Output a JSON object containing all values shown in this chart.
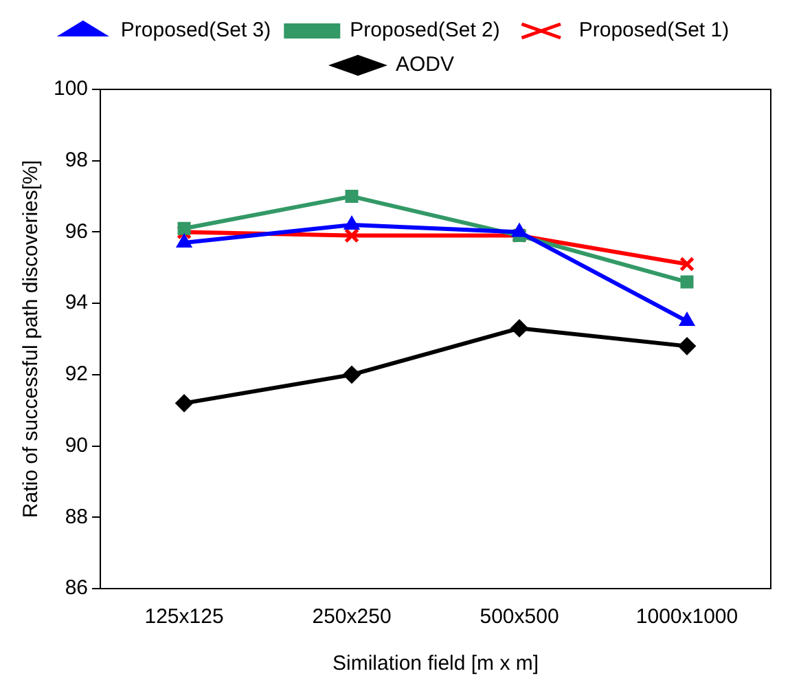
{
  "chart_data": {
    "type": "line",
    "xlabel": "Similation field [m x m]",
    "ylabel": "Ratio of successful path discoveries[%]",
    "categories": [
      "125x125",
      "250x250",
      "500x500",
      "1000x1000"
    ],
    "series": [
      {
        "name": "AODV",
        "color": "#000000",
        "marker": "diamond",
        "values": [
          91.2,
          92.0,
          93.3,
          92.8
        ]
      },
      {
        "name": "Proposed(Set 1)",
        "color": "#ff0000",
        "marker": "cross",
        "values": [
          96.0,
          95.9,
          95.9,
          95.1
        ]
      },
      {
        "name": "Proposed(Set 2)",
        "color": "#339966",
        "marker": "square",
        "values": [
          96.1,
          97.0,
          95.9,
          94.6
        ]
      },
      {
        "name": "Proposed(Set 3)",
        "color": "#0000ff",
        "marker": "triangle",
        "values": [
          95.7,
          96.2,
          96.0,
          93.5
        ]
      }
    ],
    "ylim": [
      86,
      100
    ],
    "yticks": [
      86,
      88,
      90,
      92,
      94,
      96,
      98,
      100
    ],
    "grid": false,
    "legend": "top",
    "line_style": "solid"
  }
}
